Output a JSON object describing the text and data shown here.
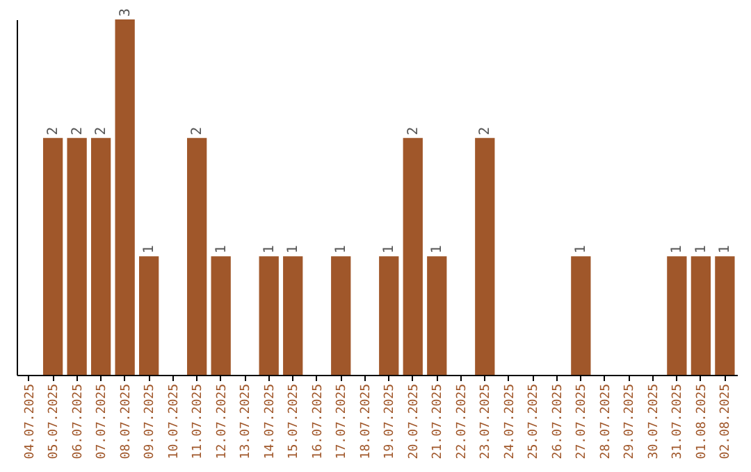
{
  "chart_data": {
    "type": "bar",
    "categories": [
      "04.07.2025",
      "05.07.2025",
      "06.07.2025",
      "07.07.2025",
      "08.07.2025",
      "09.07.2025",
      "10.07.2025",
      "11.07.2025",
      "12.07.2025",
      "13.07.2025",
      "14.07.2025",
      "15.07.2025",
      "16.07.2025",
      "17.07.2025",
      "18.07.2025",
      "19.07.2025",
      "20.07.2025",
      "21.07.2025",
      "22.07.2025",
      "23.07.2025",
      "24.07.2025",
      "25.07.2025",
      "26.07.2025",
      "27.07.2025",
      "28.07.2025",
      "29.07.2025",
      "30.07.2025",
      "31.07.2025",
      "01.08.2025",
      "02.08.2025"
    ],
    "values": [
      null,
      2,
      2,
      2,
      3,
      1,
      null,
      2,
      1,
      null,
      1,
      1,
      null,
      1,
      null,
      1,
      2,
      1,
      null,
      2,
      null,
      null,
      null,
      1,
      null,
      null,
      null,
      1,
      1,
      1
    ],
    "color": "#a0572a",
    "data_labels": true,
    "tick_labels": "x",
    "grid": false
  }
}
